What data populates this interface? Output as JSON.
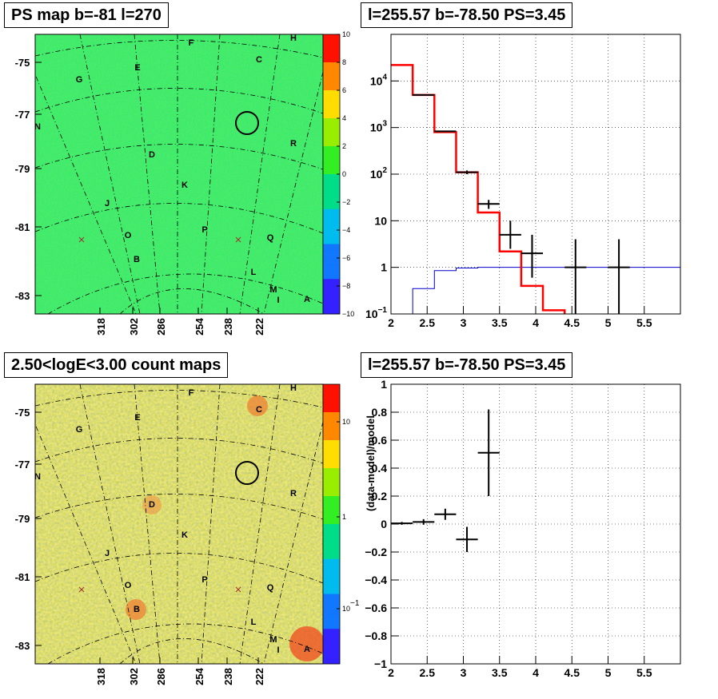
{
  "panels": {
    "tl_title": "PS map b=-81 l=270",
    "tr_title": "l=255.57 b=-78.50 PS=3.45",
    "bl_title": "2.50<logE<3.00 count maps",
    "br_title": "l=255.57 b=-78.50 PS=3.45"
  },
  "colors": {
    "model_red": "#ff0000",
    "background_blue": "#0000cc",
    "data_black": "#000000",
    "ps_map_base": "#2ee84a",
    "count_map_base": "#e6d84a"
  },
  "chart_data": [
    {
      "type": "heatmap",
      "name": "ps_map",
      "ra_ticks": [
        "318",
        "302",
        "286",
        "254",
        "238",
        "222"
      ],
      "dec_ticks": [
        "-75",
        "-77",
        "-79",
        "-81",
        "-83"
      ],
      "colorbar": {
        "min": -10,
        "max": 10,
        "ticks": [
          "10",
          "8",
          "6",
          "4",
          "2",
          "0",
          "−2",
          "−4",
          "−6",
          "−8",
          "−10"
        ]
      },
      "sources": [
        "H",
        "F",
        "C",
        "G",
        "E",
        "N",
        "R",
        "D",
        "K",
        "J",
        "O",
        "P",
        "Q",
        "B",
        "L",
        "M",
        "I",
        "A"
      ]
    },
    {
      "type": "line",
      "name": "spectrum",
      "ylog": true,
      "xlim": [
        2,
        6
      ],
      "ylim": [
        0.1,
        100000
      ],
      "xticks": [
        "2",
        "2.5",
        "3",
        "3.5",
        "4",
        "4.5",
        "5",
        "5.5"
      ],
      "yticks": [
        "10^-1",
        "1",
        "10",
        "10^2",
        "10^3",
        "10^4"
      ],
      "model_step": {
        "edges": [
          2.0,
          2.3,
          2.6,
          2.9,
          3.2,
          3.5,
          3.8,
          4.1,
          4.4
        ],
        "values": [
          22000,
          5000,
          800,
          110,
          15,
          2.2,
          0.4,
          0.12
        ]
      },
      "background_step": {
        "edges": [
          2.0,
          2.3,
          2.6,
          2.9,
          3.2,
          6.0
        ],
        "values": [
          0.1,
          0.35,
          0.85,
          0.97,
          1.0
        ]
      },
      "data_points": [
        {
          "x": 2.45,
          "y": 5000,
          "xerr": 0.15,
          "ylo": 4900,
          "yhi": 5100
        },
        {
          "x": 2.75,
          "y": 830,
          "xerr": 0.15,
          "ylo": 800,
          "yhi": 860
        },
        {
          "x": 3.05,
          "y": 110,
          "xerr": 0.15,
          "ylo": 100,
          "yhi": 120
        },
        {
          "x": 3.35,
          "y": 23,
          "xerr": 0.15,
          "ylo": 18,
          "yhi": 28
        },
        {
          "x": 3.65,
          "y": 5,
          "xerr": 0.15,
          "ylo": 2.5,
          "yhi": 10
        },
        {
          "x": 3.95,
          "y": 2,
          "xerr": 0.15,
          "ylo": 0.6,
          "yhi": 5
        },
        {
          "x": 4.55,
          "y": 1,
          "xerr": 0.15,
          "ylo": 0.1,
          "yhi": 4
        },
        {
          "x": 5.15,
          "y": 1,
          "xerr": 0.15,
          "ylo": 0.1,
          "yhi": 4
        }
      ]
    },
    {
      "type": "heatmap",
      "name": "count_map",
      "ra_ticks": [
        "318",
        "302",
        "286",
        "254",
        "238",
        "222"
      ],
      "dec_ticks": [
        "-75",
        "-77",
        "-79",
        "-81",
        "-83"
      ],
      "colorbar": {
        "log": true,
        "ticks": [
          "10",
          "1",
          "10^-1"
        ]
      },
      "sources": [
        "H",
        "F",
        "C",
        "G",
        "E",
        "N",
        "R",
        "D",
        "K",
        "J",
        "O",
        "P",
        "Q",
        "B",
        "L",
        "M",
        "I",
        "A"
      ]
    },
    {
      "type": "scatter",
      "name": "residual",
      "xlim": [
        2,
        6
      ],
      "ylim": [
        -1,
        1
      ],
      "ylabel": "(data-model)/model",
      "xticks": [
        "2",
        "2.5",
        "3",
        "3.5",
        "4",
        "4.5",
        "5",
        "5.5"
      ],
      "yticks": [
        "−1",
        "−0.8",
        "−0.6",
        "−0.4",
        "−0.2",
        "0",
        "0.2",
        "0.4",
        "0.6",
        "0.8",
        "1"
      ],
      "points": [
        {
          "x": 2.15,
          "y": 0.005,
          "xerr": 0.15,
          "yerr": 0.01
        },
        {
          "x": 2.45,
          "y": 0.015,
          "xerr": 0.15,
          "yerr": 0.02
        },
        {
          "x": 2.75,
          "y": 0.07,
          "xerr": 0.15,
          "yerr": 0.04
        },
        {
          "x": 3.05,
          "y": -0.11,
          "xerr": 0.15,
          "yerr": 0.09
        },
        {
          "x": 3.35,
          "y": 0.51,
          "xerr": 0.15,
          "yerr": 0.31
        }
      ]
    }
  ]
}
